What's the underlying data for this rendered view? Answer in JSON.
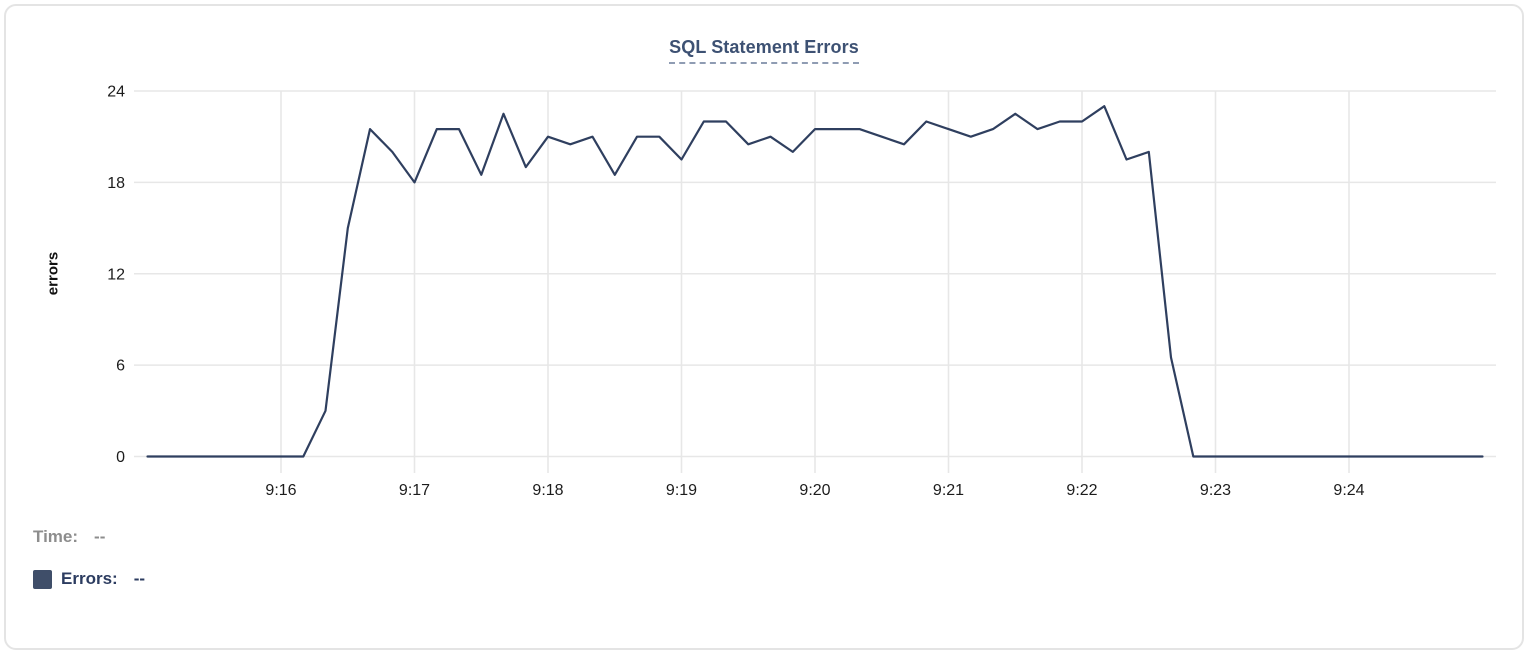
{
  "chart": {
    "title": "SQL Statement Errors",
    "y_axis_label": "errors"
  },
  "readout": {
    "time_label": "Time:",
    "time_value": "--",
    "errors_label": "Errors:",
    "errors_value": "--"
  },
  "colors": {
    "line": "#2f3f5f",
    "legend_swatch": "#3f4e69",
    "title_text": "#3d5173",
    "grid": "#e7e7e7",
    "axis_text": "#1c1c1c",
    "muted_text": "#8d8d8d",
    "legend_text": "#2c3c60"
  },
  "chart_data": {
    "type": "line",
    "title": "SQL Statement Errors",
    "xlabel": "",
    "ylabel": "errors",
    "ylim": [
      0,
      24
    ],
    "y_ticks": [
      0,
      6,
      12,
      18,
      24
    ],
    "x_ticks": [
      "9:16",
      "9:17",
      "9:18",
      "9:19",
      "9:20",
      "9:21",
      "9:22",
      "9:23",
      "9:24"
    ],
    "x_range": [
      "9:15:00",
      "9:25:00"
    ],
    "grid": true,
    "legend_position": "below-left",
    "series": [
      {
        "name": "Errors",
        "color": "#2f3f5f",
        "points": [
          {
            "t": "9:15:00",
            "v": 0
          },
          {
            "t": "9:15:10",
            "v": 0
          },
          {
            "t": "9:15:20",
            "v": 0
          },
          {
            "t": "9:15:30",
            "v": 0
          },
          {
            "t": "9:15:40",
            "v": 0
          },
          {
            "t": "9:15:50",
            "v": 0
          },
          {
            "t": "9:16:00",
            "v": 0
          },
          {
            "t": "9:16:10",
            "v": 0
          },
          {
            "t": "9:16:20",
            "v": 3
          },
          {
            "t": "9:16:30",
            "v": 15
          },
          {
            "t": "9:16:40",
            "v": 21.5
          },
          {
            "t": "9:16:50",
            "v": 20
          },
          {
            "t": "9:17:00",
            "v": 18
          },
          {
            "t": "9:17:10",
            "v": 21.5
          },
          {
            "t": "9:17:20",
            "v": 21.5
          },
          {
            "t": "9:17:30",
            "v": 18.5
          },
          {
            "t": "9:17:40",
            "v": 22.5
          },
          {
            "t": "9:17:50",
            "v": 19
          },
          {
            "t": "9:18:00",
            "v": 21
          },
          {
            "t": "9:18:10",
            "v": 20.5
          },
          {
            "t": "9:18:20",
            "v": 21
          },
          {
            "t": "9:18:30",
            "v": 18.5
          },
          {
            "t": "9:18:40",
            "v": 21
          },
          {
            "t": "9:18:50",
            "v": 21
          },
          {
            "t": "9:19:00",
            "v": 19.5
          },
          {
            "t": "9:19:10",
            "v": 22
          },
          {
            "t": "9:19:20",
            "v": 22
          },
          {
            "t": "9:19:30",
            "v": 20.5
          },
          {
            "t": "9:19:40",
            "v": 21
          },
          {
            "t": "9:19:50",
            "v": 20
          },
          {
            "t": "9:20:00",
            "v": 21.5
          },
          {
            "t": "9:20:10",
            "v": 21.5
          },
          {
            "t": "9:20:20",
            "v": 21.5
          },
          {
            "t": "9:20:30",
            "v": 21
          },
          {
            "t": "9:20:40",
            "v": 20.5
          },
          {
            "t": "9:20:50",
            "v": 22
          },
          {
            "t": "9:21:00",
            "v": 21.5
          },
          {
            "t": "9:21:10",
            "v": 21
          },
          {
            "t": "9:21:20",
            "v": 21.5
          },
          {
            "t": "9:21:30",
            "v": 22.5
          },
          {
            "t": "9:21:40",
            "v": 21.5
          },
          {
            "t": "9:21:50",
            "v": 22
          },
          {
            "t": "9:22:00",
            "v": 22
          },
          {
            "t": "9:22:10",
            "v": 23
          },
          {
            "t": "9:22:20",
            "v": 19.5
          },
          {
            "t": "9:22:30",
            "v": 20
          },
          {
            "t": "9:22:40",
            "v": 6.5
          },
          {
            "t": "9:22:50",
            "v": 0
          },
          {
            "t": "9:23:00",
            "v": 0
          },
          {
            "t": "9:23:10",
            "v": 0
          },
          {
            "t": "9:23:20",
            "v": 0
          },
          {
            "t": "9:23:30",
            "v": 0
          },
          {
            "t": "9:23:40",
            "v": 0
          },
          {
            "t": "9:23:50",
            "v": 0
          },
          {
            "t": "9:24:00",
            "v": 0
          },
          {
            "t": "9:24:10",
            "v": 0
          },
          {
            "t": "9:24:20",
            "v": 0
          },
          {
            "t": "9:24:30",
            "v": 0
          },
          {
            "t": "9:24:40",
            "v": 0
          },
          {
            "t": "9:24:50",
            "v": 0
          },
          {
            "t": "9:25:00",
            "v": 0
          }
        ]
      }
    ]
  }
}
